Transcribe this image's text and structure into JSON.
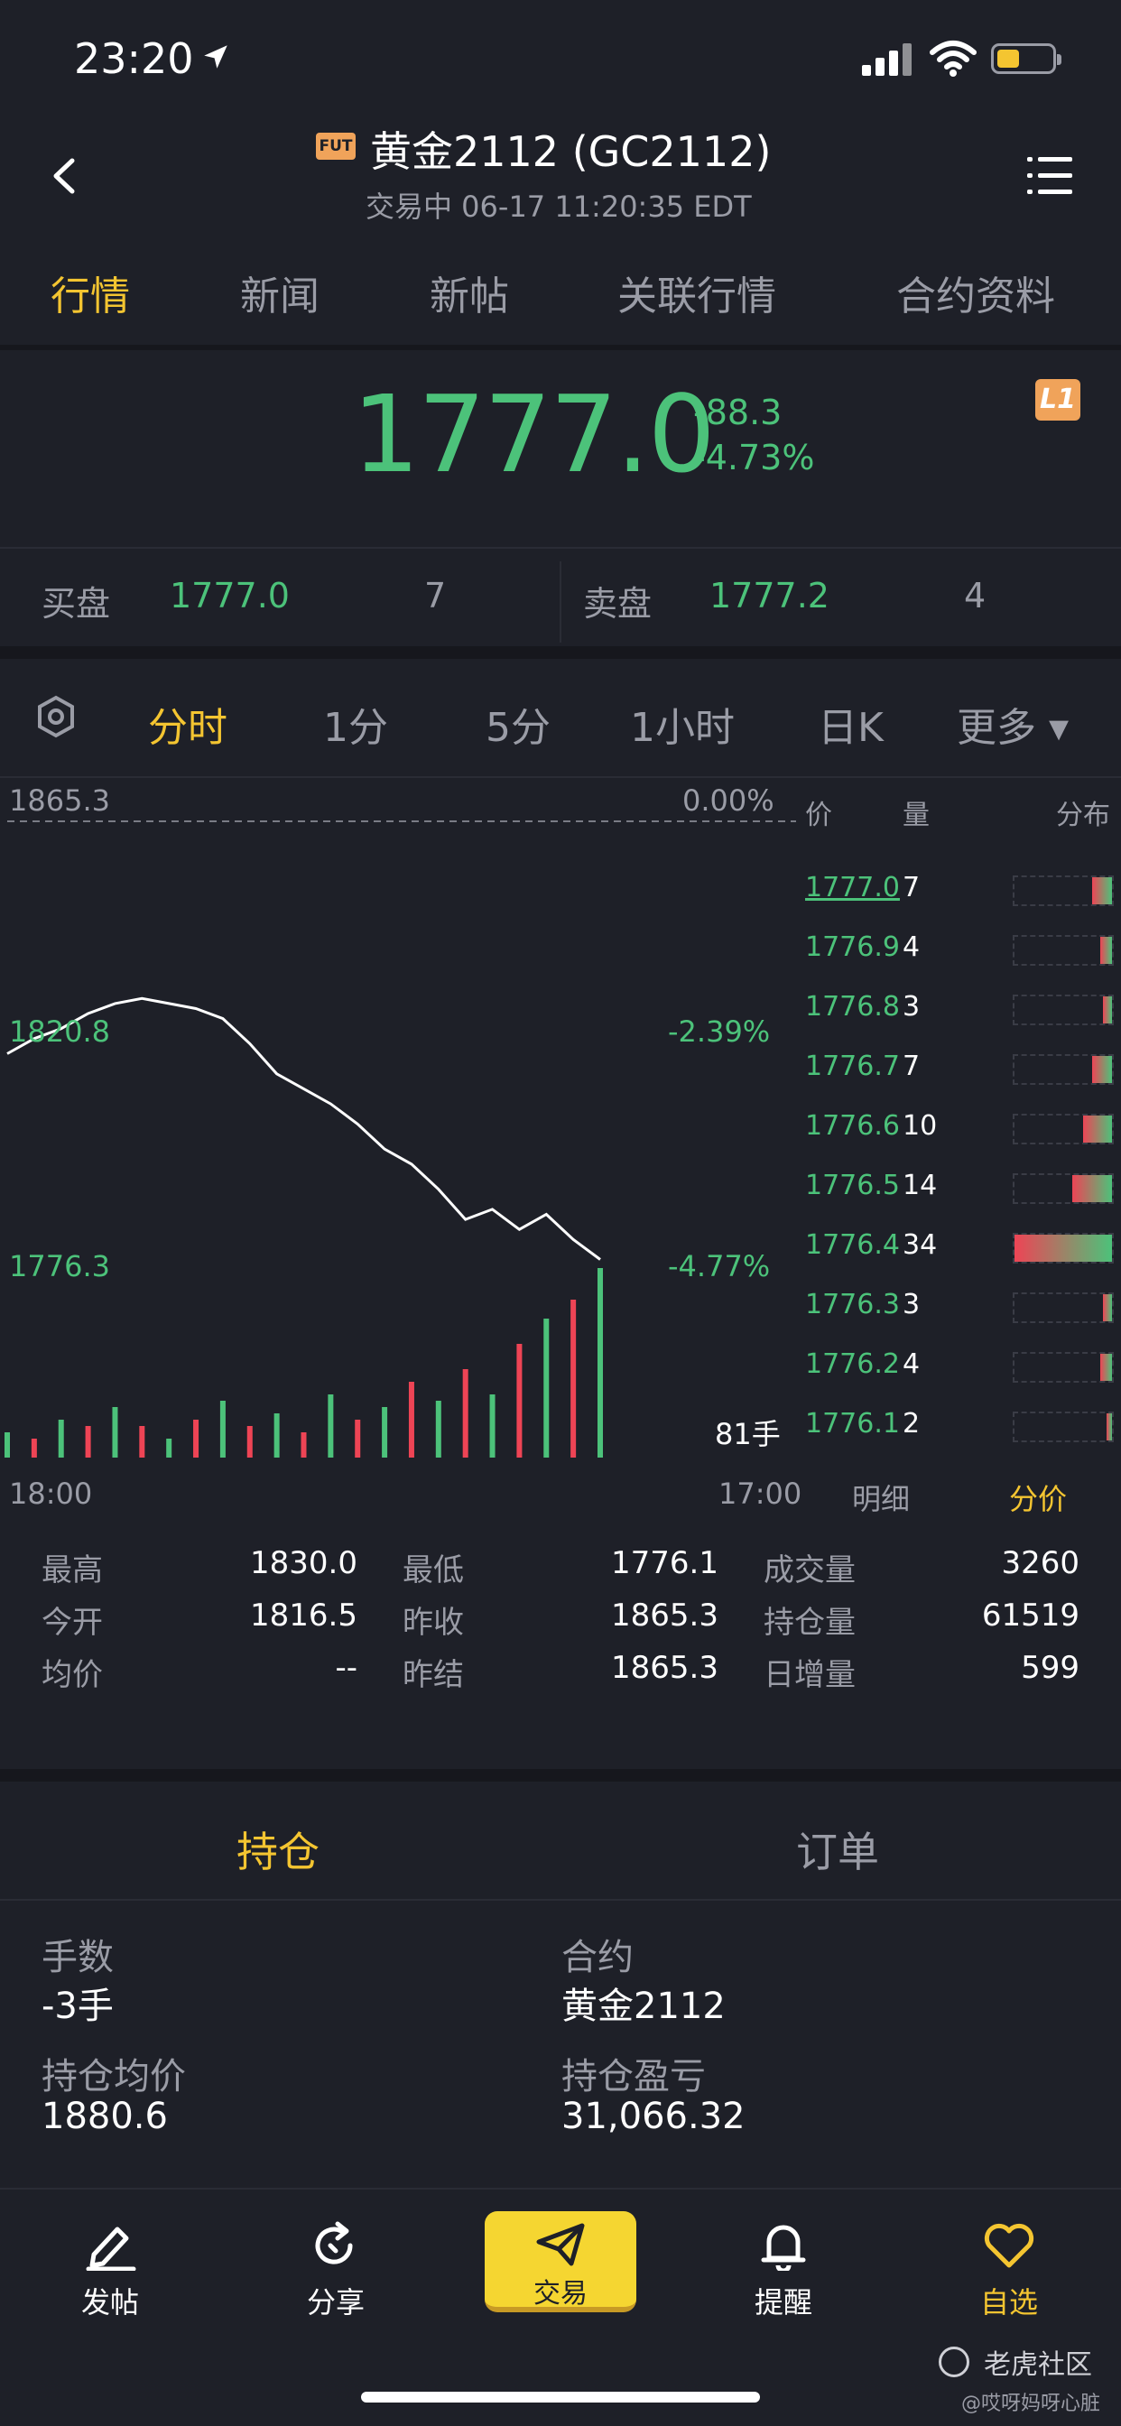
{
  "status_bar": {
    "time": "23:20"
  },
  "header": {
    "badge": "FUT",
    "title": "黄金2112 (GC2112)",
    "subtitle": "交易中 06-17 11:20:35 EDT"
  },
  "tabs": [
    "行情",
    "新闻",
    "新帖",
    "关联行情",
    "合约资料"
  ],
  "quote": {
    "price": "1777.0",
    "change": "-88.3",
    "change_pct": "-4.73%",
    "level_badge": "L1"
  },
  "bid_ask": {
    "bid_label": "买盘",
    "bid_price": "1777.0",
    "bid_qty": "7",
    "ask_label": "卖盘",
    "ask_price": "1777.2",
    "ask_qty": "4"
  },
  "range_tabs": [
    "分时",
    "1分",
    "5分",
    "1小时",
    "日K",
    "更多 ▾"
  ],
  "chart_data": {
    "type": "line",
    "title": "",
    "ylabels": [
      "1865.3",
      "1820.8",
      "1776.3"
    ],
    "pct_labels": [
      "0.00%",
      "-2.39%",
      "-4.77%"
    ],
    "x_start": "18:00",
    "x_end": "17:00",
    "volume_label": "81手",
    "ylim": [
      1776.3,
      1865.3
    ],
    "prior_close": 1865.3,
    "series": [
      {
        "values": [
          1819,
          1822,
          1824,
          1827,
          1829,
          1830,
          1829,
          1828,
          1826,
          1821,
          1815,
          1812,
          1809,
          1805,
          1800,
          1797,
          1792,
          1786,
          1788,
          1784,
          1787,
          1782,
          1778
        ]
      }
    ],
    "volume": [
      4,
      3,
      6,
      5,
      8,
      5,
      3,
      6,
      9,
      5,
      7,
      4,
      10,
      6,
      8,
      12,
      9,
      14,
      10,
      18,
      22,
      25,
      30
    ]
  },
  "order_book": {
    "headers": {
      "price": "价",
      "qty": "量",
      "dist": "分布"
    },
    "rows": [
      {
        "price": "1777.0",
        "qty": "7"
      },
      {
        "price": "1776.9",
        "qty": "4"
      },
      {
        "price": "1776.8",
        "qty": "3"
      },
      {
        "price": "1776.7",
        "qty": "7"
      },
      {
        "price": "1776.6",
        "qty": "10"
      },
      {
        "price": "1776.5",
        "qty": "14"
      },
      {
        "price": "1776.4",
        "qty": "34"
      },
      {
        "price": "1776.3",
        "qty": "3"
      },
      {
        "price": "1776.2",
        "qty": "4"
      },
      {
        "price": "1776.1",
        "qty": "2"
      }
    ],
    "tab_detail": "明细",
    "tab_price": "分价"
  },
  "stats": [
    [
      "最高",
      "1830.0",
      "最低",
      "1776.1",
      "成交量",
      "3260"
    ],
    [
      "今开",
      "1816.5",
      "昨收",
      "1865.3",
      "持仓量",
      "61519"
    ],
    [
      "均价",
      "--",
      "昨结",
      "1865.3",
      "日增量",
      "599"
    ]
  ],
  "position_tabs": {
    "holding": "持仓",
    "orders": "订单"
  },
  "position": {
    "qty_label": "手数",
    "qty": "-3手",
    "contract_label": "合约",
    "contract": "黄金2112",
    "avg_label": "持仓均价",
    "avg": "1880.6",
    "pnl_label": "持仓盈亏",
    "pnl": "31,066.32"
  },
  "bottom_nav": {
    "post": "发帖",
    "share": "分享",
    "trade": "交易",
    "alert": "提醒",
    "watch": "自选"
  },
  "watermark": {
    "brand": "老虎社区",
    "user": "@哎呀妈呀心脏"
  }
}
